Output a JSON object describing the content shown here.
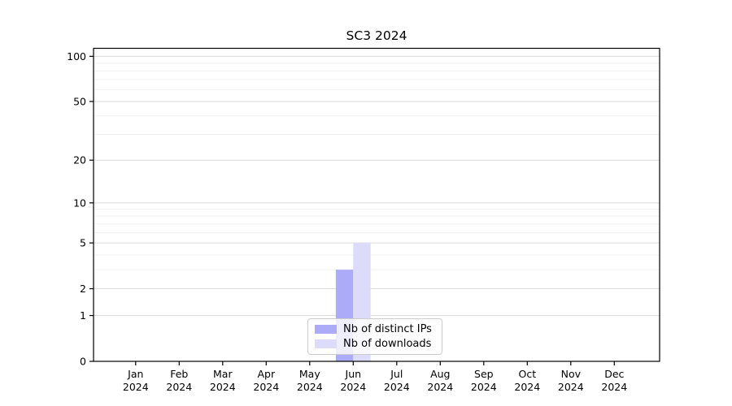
{
  "chart_data": {
    "type": "bar",
    "title": "SC3 2024",
    "categories": [
      "Jan",
      "Feb",
      "Mar",
      "Apr",
      "May",
      "Jun",
      "Jul",
      "Aug",
      "Sep",
      "Oct",
      "Nov",
      "Dec"
    ],
    "category_year": "2024",
    "series": [
      {
        "name": "Nb of distinct IPs",
        "color": "#ababf7",
        "values": [
          0,
          0,
          0,
          0,
          0,
          3,
          0,
          0,
          0,
          0,
          0,
          0
        ]
      },
      {
        "name": "Nb of downloads",
        "color": "#dcdcfa",
        "values": [
          0,
          0,
          0,
          0,
          0,
          5,
          0,
          0,
          0,
          0,
          0,
          0
        ]
      }
    ],
    "xlabel": "",
    "ylabel": "",
    "yscale": "log1p",
    "ylim": [
      0,
      113
    ],
    "yticks": [
      0,
      1,
      2,
      5,
      10,
      20,
      50,
      100
    ],
    "yticks_minor": [
      3,
      4,
      6,
      7,
      8,
      9,
      30,
      40,
      60,
      70,
      80,
      90
    ],
    "grid": "horizontal",
    "legend_position": "lower center",
    "colors": {
      "spine": "#000000",
      "grid_major": "#dadada",
      "grid_minor": "#f0f0f0",
      "background": "#ffffff"
    }
  }
}
